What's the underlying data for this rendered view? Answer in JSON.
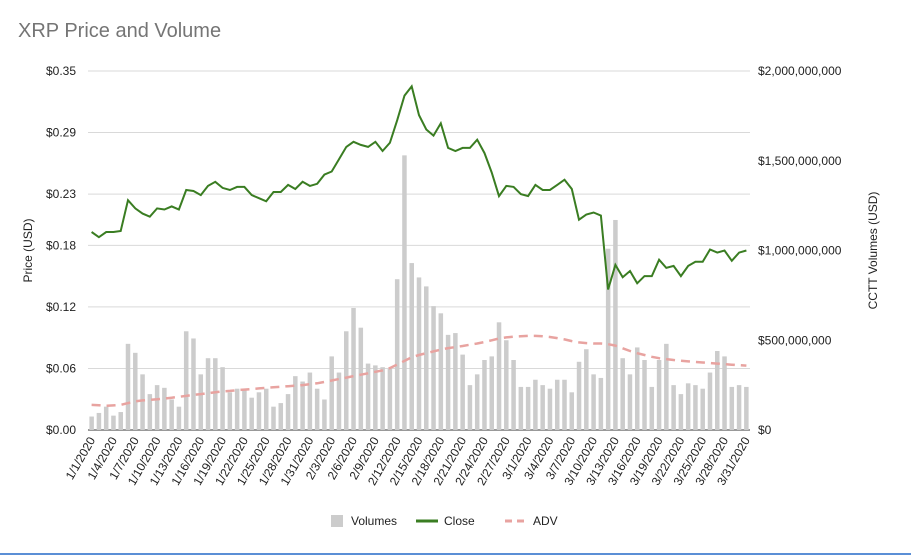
{
  "chart_data": {
    "type": "bar+line",
    "title": "XRP Price and Volume",
    "ylabel_left": "Price (USD)",
    "ylabel_right": "CCTT Volumes (USD)",
    "left_axis": {
      "range": [
        0,
        0.35
      ],
      "ticks": [
        0,
        0.06,
        0.12,
        0.18,
        0.23,
        0.29,
        0.35
      ],
      "tick_labels": [
        "$0.00",
        "$0.06",
        "$0.12",
        "$0.18",
        "$0.23",
        "$0.29",
        "$0.35"
      ]
    },
    "right_axis": {
      "range": [
        0,
        2000000000
      ],
      "ticks": [
        0,
        500000000,
        1000000000,
        1500000000,
        2000000000
      ],
      "tick_labels": [
        "$0",
        "$500,000,000",
        "$1,000,000,000",
        "$1,500,000,000",
        "$2,000,000,000"
      ]
    },
    "x_tick_labels": [
      "1/1/2020",
      "1/4/2020",
      "1/7/2020",
      "1/10/2020",
      "1/13/2020",
      "1/16/2020",
      "1/19/2020",
      "1/22/2020",
      "1/25/2020",
      "1/28/2020",
      "1/31/2020",
      "2/3/2020",
      "2/6/2020",
      "2/9/2020",
      "2/12/2020",
      "2/15/2020",
      "2/18/2020",
      "2/21/2020",
      "2/24/2020",
      "2/27/2020",
      "3/1/2020",
      "3/4/2020",
      "3/7/2020",
      "3/10/2020",
      "3/13/2020",
      "3/16/2020",
      "3/19/2020",
      "3/22/2020",
      "3/25/2020",
      "3/28/2020",
      "3/31/2020"
    ],
    "legend": [
      {
        "label": "Volumes",
        "color": "#cccccc",
        "style": "bar"
      },
      {
        "label": "Close",
        "color": "#3a7d22",
        "style": "line"
      },
      {
        "label": "ADV",
        "color": "#e8a3a0",
        "style": "dashed"
      }
    ],
    "legend_position": "bottom",
    "gridlines": true,
    "series": [
      {
        "name": "Close",
        "axis": "left",
        "values": [
          0.193,
          0.188,
          0.193,
          0.193,
          0.194,
          0.224,
          0.216,
          0.211,
          0.208,
          0.216,
          0.215,
          0.218,
          0.215,
          0.234,
          0.233,
          0.229,
          0.238,
          0.242,
          0.236,
          0.234,
          0.237,
          0.237,
          0.229,
          0.226,
          0.223,
          0.232,
          0.232,
          0.239,
          0.235,
          0.242,
          0.238,
          0.24,
          0.249,
          0.252,
          0.264,
          0.276,
          0.281,
          0.278,
          0.276,
          0.281,
          0.272,
          0.28,
          0.302,
          0.326,
          0.335,
          0.307,
          0.293,
          0.287,
          0.299,
          0.275,
          0.272,
          0.275,
          0.275,
          0.283,
          0.27,
          0.251,
          0.228,
          0.238,
          0.237,
          0.23,
          0.228,
          0.239,
          0.234,
          0.234,
          0.239,
          0.244,
          0.235,
          0.205,
          0.21,
          0.212,
          0.209,
          0.137,
          0.161,
          0.149,
          0.155,
          0.143,
          0.15,
          0.15,
          0.166,
          0.158,
          0.16,
          0.15,
          0.16,
          0.164,
          0.164,
          0.176,
          0.173,
          0.175,
          0.165,
          0.173,
          0.175
        ]
      },
      {
        "name": "Volumes",
        "axis": "right",
        "values": [
          75000000,
          95000000,
          130000000,
          80000000,
          100000000,
          480000000,
          430000000,
          310000000,
          200000000,
          250000000,
          235000000,
          170000000,
          130000000,
          550000000,
          510000000,
          310000000,
          400000000,
          400000000,
          350000000,
          210000000,
          230000000,
          220000000,
          180000000,
          210000000,
          230000000,
          130000000,
          150000000,
          200000000,
          300000000,
          270000000,
          320000000,
          230000000,
          170000000,
          410000000,
          320000000,
          550000000,
          680000000,
          570000000,
          370000000,
          360000000,
          350000000,
          340000000,
          840000000,
          1530000000,
          930000000,
          850000000,
          800000000,
          690000000,
          650000000,
          530000000,
          540000000,
          420000000,
          250000000,
          310000000,
          390000000,
          410000000,
          600000000,
          500000000,
          390000000,
          240000000,
          240000000,
          280000000,
          250000000,
          230000000,
          280000000,
          280000000,
          210000000,
          380000000,
          450000000,
          310000000,
          290000000,
          1010000000,
          1170000000,
          400000000,
          310000000,
          460000000,
          390000000,
          240000000,
          390000000,
          480000000,
          250000000,
          200000000,
          260000000,
          250000000,
          230000000,
          320000000,
          440000000,
          410000000,
          240000000,
          250000000,
          240000000
        ]
      },
      {
        "name": "ADV",
        "axis": "right",
        "values": [
          140000000,
          138000000,
          135000000,
          137000000,
          140000000,
          150000000,
          160000000,
          165000000,
          168000000,
          171000000,
          175000000,
          180000000,
          185000000,
          190000000,
          196000000,
          200000000,
          205000000,
          210000000,
          215000000,
          218000000,
          222000000,
          225000000,
          228000000,
          232000000,
          235000000,
          238000000,
          241000000,
          244000000,
          247000000,
          250000000,
          255000000,
          260000000,
          268000000,
          276000000,
          284000000,
          292000000,
          300000000,
          308000000,
          316000000,
          324000000,
          332000000,
          345000000,
          365000000,
          385000000,
          405000000,
          418000000,
          428000000,
          438000000,
          448000000,
          456000000,
          462000000,
          468000000,
          475000000,
          482000000,
          490000000,
          500000000,
          510000000,
          516000000,
          520000000,
          522000000,
          524000000,
          524000000,
          522000000,
          518000000,
          512000000,
          505000000,
          495000000,
          488000000,
          484000000,
          482000000,
          482000000,
          478000000,
          470000000,
          455000000,
          440000000,
          428000000,
          418000000,
          408000000,
          400000000,
          395000000,
          390000000,
          386000000,
          382000000,
          379000000,
          376000000,
          373000000,
          370000000,
          367000000,
          364000000,
          361000000,
          359000000
        ]
      }
    ]
  }
}
